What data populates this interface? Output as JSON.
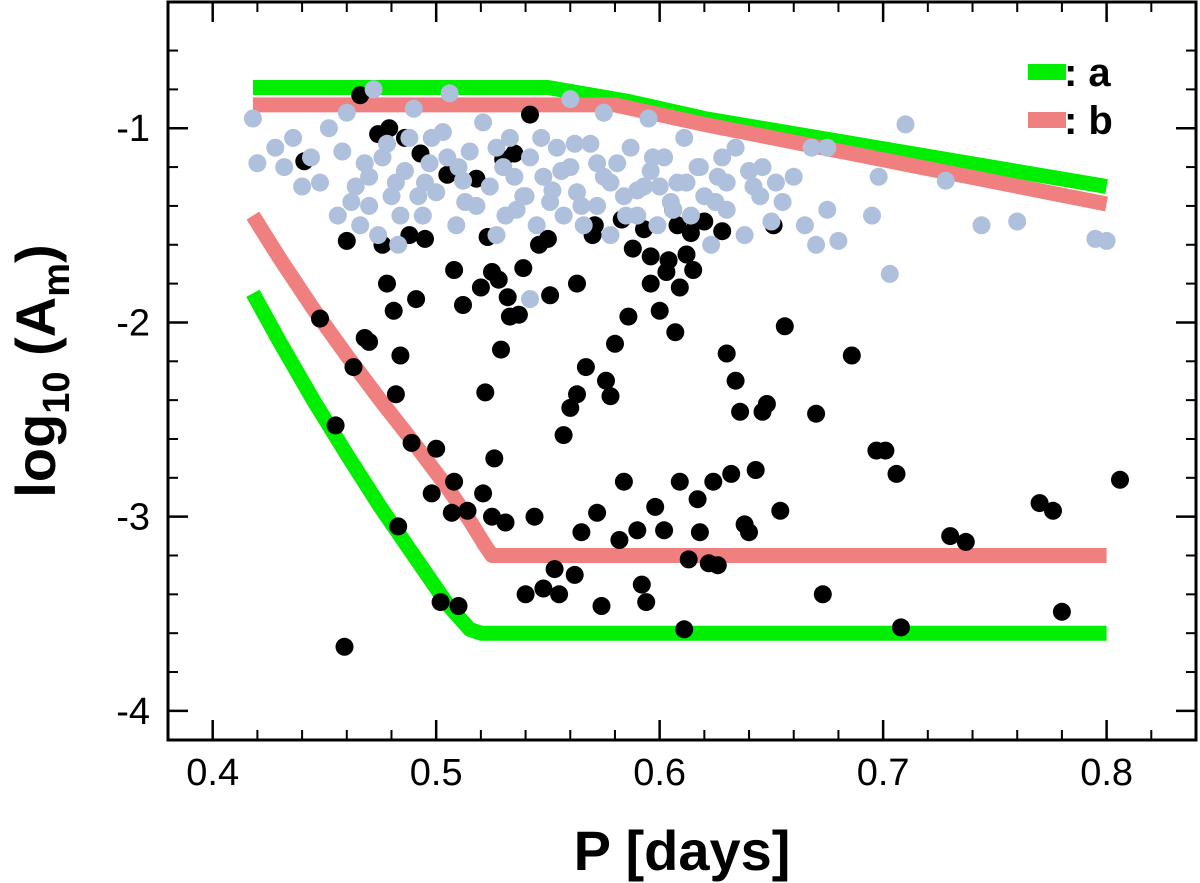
{
  "chart_data": {
    "type": "scatter",
    "xlabel": "P [days]",
    "ylabel": {
      "base": "log",
      "sub1": "10",
      "mid": " (A",
      "sub2": "m",
      "end": ")"
    },
    "xlim": [
      0.38,
      0.84
    ],
    "ylim": [
      -4.15,
      -0.35
    ],
    "xticks": [
      0.4,
      0.5,
      0.6,
      0.7,
      0.8
    ],
    "xtick_labels": [
      "0.4",
      "0.5",
      "0.6",
      "0.7",
      "0.8"
    ],
    "yticks": [
      -1,
      -2,
      -3,
      -4
    ],
    "ytick_labels": [
      "-1",
      "-2",
      "-3",
      "-4"
    ],
    "grid": false,
    "legend_position": "top-right",
    "colors": {
      "a": "#00ee00",
      "b": "#f08080",
      "light": "#aec0dc",
      "dark": "#000000"
    },
    "lines": [
      {
        "name": ": a",
        "color": "#00ee00",
        "points": [
          [
            0.418,
            -0.79
          ],
          [
            0.55,
            -0.79
          ],
          [
            0.585,
            -0.86
          ],
          [
            0.62,
            -0.95
          ],
          [
            0.8,
            -1.3
          ]
        ]
      },
      {
        "name": ": b",
        "color": "#f08080",
        "points": [
          [
            0.418,
            -0.88
          ],
          [
            0.58,
            -0.88
          ],
          [
            0.62,
            -0.98
          ],
          [
            0.8,
            -1.39
          ]
        ]
      },
      {
        "color": "#f08080",
        "points": [
          [
            0.418,
            -1.45
          ],
          [
            0.43,
            -1.67
          ],
          [
            0.445,
            -1.93
          ],
          [
            0.46,
            -2.17
          ],
          [
            0.475,
            -2.4
          ],
          [
            0.49,
            -2.62
          ],
          [
            0.505,
            -2.85
          ],
          [
            0.515,
            -3.02
          ],
          [
            0.522,
            -3.15
          ],
          [
            0.525,
            -3.2
          ],
          [
            0.8,
            -3.2
          ]
        ]
      },
      {
        "color": "#00ee00",
        "points": [
          [
            0.418,
            -1.85
          ],
          [
            0.43,
            -2.1
          ],
          [
            0.445,
            -2.4
          ],
          [
            0.46,
            -2.68
          ],
          [
            0.475,
            -2.95
          ],
          [
            0.49,
            -3.2
          ],
          [
            0.505,
            -3.45
          ],
          [
            0.515,
            -3.58
          ],
          [
            0.52,
            -3.6
          ],
          [
            0.8,
            -3.6
          ]
        ]
      }
    ],
    "series": [
      {
        "color": "#000000",
        "points": [
          [
            0.441,
            -1.17
          ],
          [
            0.448,
            -1.98
          ],
          [
            0.455,
            -2.53
          ],
          [
            0.459,
            -3.67
          ],
          [
            0.46,
            -1.58
          ],
          [
            0.463,
            -2.23
          ],
          [
            0.466,
            -0.83
          ],
          [
            0.468,
            -2.08
          ],
          [
            0.47,
            -2.1
          ],
          [
            0.474,
            -1.03
          ],
          [
            0.476,
            -1.6
          ],
          [
            0.478,
            -1.8
          ],
          [
            0.479,
            -1.0
          ],
          [
            0.481,
            -1.94
          ],
          [
            0.482,
            -2.37
          ],
          [
            0.483,
            -3.05
          ],
          [
            0.484,
            -2.17
          ],
          [
            0.486,
            -1.05
          ],
          [
            0.488,
            -1.55
          ],
          [
            0.489,
            -2.62
          ],
          [
            0.491,
            -1.88
          ],
          [
            0.493,
            -1.13
          ],
          [
            0.495,
            -1.57
          ],
          [
            0.498,
            -2.88
          ],
          [
            0.5,
            -2.65
          ],
          [
            0.502,
            -3.44
          ],
          [
            0.505,
            -1.24
          ],
          [
            0.507,
            -2.98
          ],
          [
            0.508,
            -2.82
          ],
          [
            0.51,
            -3.46
          ],
          [
            0.512,
            -1.91
          ],
          [
            0.514,
            -2.97
          ],
          [
            0.518,
            -1.26
          ],
          [
            0.52,
            -1.82
          ],
          [
            0.521,
            -2.88
          ],
          [
            0.522,
            -2.36
          ],
          [
            0.523,
            -1.56
          ],
          [
            0.525,
            -3.0
          ],
          [
            0.526,
            -2.7
          ],
          [
            0.528,
            -1.78
          ],
          [
            0.529,
            -2.14
          ],
          [
            0.53,
            -1.16
          ],
          [
            0.531,
            -3.03
          ],
          [
            0.532,
            -1.87
          ],
          [
            0.533,
            -1.97
          ],
          [
            0.535,
            -1.13
          ],
          [
            0.537,
            -1.96
          ],
          [
            0.539,
            -1.72
          ],
          [
            0.54,
            -3.4
          ],
          [
            0.542,
            -0.93
          ],
          [
            0.544,
            -3.0
          ],
          [
            0.546,
            -1.6
          ],
          [
            0.548,
            -3.37
          ],
          [
            0.55,
            -1.57
          ],
          [
            0.551,
            -1.86
          ],
          [
            0.553,
            -3.27
          ],
          [
            0.555,
            -3.4
          ],
          [
            0.557,
            -2.58
          ],
          [
            0.56,
            -2.44
          ],
          [
            0.562,
            -3.3
          ],
          [
            0.563,
            -2.37
          ],
          [
            0.565,
            -3.08
          ],
          [
            0.567,
            -2.23
          ],
          [
            0.57,
            -1.55
          ],
          [
            0.572,
            -2.98
          ],
          [
            0.574,
            -3.46
          ],
          [
            0.576,
            -2.3
          ],
          [
            0.578,
            -2.38
          ],
          [
            0.58,
            -2.11
          ],
          [
            0.582,
            -3.12
          ],
          [
            0.584,
            -2.82
          ],
          [
            0.586,
            -1.97
          ],
          [
            0.588,
            -1.62
          ],
          [
            0.59,
            -3.07
          ],
          [
            0.592,
            -3.35
          ],
          [
            0.594,
            -3.44
          ],
          [
            0.596,
            -1.8
          ],
          [
            0.598,
            -2.95
          ],
          [
            0.6,
            -1.94
          ],
          [
            0.602,
            -3.07
          ],
          [
            0.604,
            -1.68
          ],
          [
            0.606,
            -1.42
          ],
          [
            0.607,
            -2.05
          ],
          [
            0.609,
            -2.82
          ],
          [
            0.611,
            -3.58
          ],
          [
            0.613,
            -3.22
          ],
          [
            0.615,
            -1.73
          ],
          [
            0.617,
            -2.91
          ],
          [
            0.618,
            -3.08
          ],
          [
            0.62,
            -1.48
          ],
          [
            0.622,
            -3.24
          ],
          [
            0.624,
            -2.82
          ],
          [
            0.626,
            -3.25
          ],
          [
            0.628,
            -1.53
          ],
          [
            0.63,
            -2.16
          ],
          [
            0.632,
            -2.78
          ],
          [
            0.634,
            -2.3
          ],
          [
            0.636,
            -2.46
          ],
          [
            0.638,
            -3.04
          ],
          [
            0.64,
            -3.08
          ],
          [
            0.643,
            -2.76
          ],
          [
            0.646,
            -2.46
          ],
          [
            0.648,
            -2.42
          ],
          [
            0.651,
            -1.5
          ],
          [
            0.654,
            -2.97
          ],
          [
            0.656,
            -2.02
          ],
          [
            0.67,
            -2.47
          ],
          [
            0.673,
            -3.4
          ],
          [
            0.686,
            -2.17
          ],
          [
            0.697,
            -2.66
          ],
          [
            0.701,
            -2.66
          ],
          [
            0.706,
            -2.78
          ],
          [
            0.708,
            -3.57
          ],
          [
            0.73,
            -3.1
          ],
          [
            0.737,
            -3.13
          ],
          [
            0.77,
            -2.93
          ],
          [
            0.776,
            -2.97
          ],
          [
            0.78,
            -3.49
          ],
          [
            0.806,
            -2.81
          ],
          [
            0.571,
            -1.5
          ],
          [
            0.583,
            -1.47
          ],
          [
            0.593,
            -1.52
          ],
          [
            0.596,
            -1.66
          ],
          [
            0.603,
            -1.74
          ],
          [
            0.608,
            -1.5
          ],
          [
            0.609,
            -1.82
          ],
          [
            0.612,
            -1.65
          ],
          [
            0.614,
            -1.54
          ],
          [
            0.616,
            -1.48
          ],
          [
            0.563,
            -1.8
          ],
          [
            0.525,
            -1.74
          ],
          [
            0.508,
            -1.73
          ]
        ]
      },
      {
        "color": "#aec0dc",
        "points": [
          [
            0.418,
            -0.95
          ],
          [
            0.42,
            -1.18
          ],
          [
            0.428,
            -1.1
          ],
          [
            0.432,
            -1.2
          ],
          [
            0.436,
            -1.05
          ],
          [
            0.44,
            -1.3
          ],
          [
            0.444,
            -1.15
          ],
          [
            0.448,
            -1.28
          ],
          [
            0.452,
            -1.0
          ],
          [
            0.456,
            -1.45
          ],
          [
            0.46,
            -0.92
          ],
          [
            0.464,
            -1.3
          ],
          [
            0.466,
            -1.5
          ],
          [
            0.47,
            -1.4
          ],
          [
            0.472,
            -0.8
          ],
          [
            0.474,
            -1.55
          ],
          [
            0.478,
            -1.08
          ],
          [
            0.48,
            -1.35
          ],
          [
            0.483,
            -1.6
          ],
          [
            0.486,
            -1.22
          ],
          [
            0.49,
            -0.9
          ],
          [
            0.494,
            -1.45
          ],
          [
            0.497,
            -1.18
          ],
          [
            0.5,
            -1.33
          ],
          [
            0.503,
            -1.02
          ],
          [
            0.506,
            -0.82
          ],
          [
            0.509,
            -1.5
          ],
          [
            0.512,
            -1.27
          ],
          [
            0.515,
            -1.12
          ],
          [
            0.518,
            -1.4
          ],
          [
            0.521,
            -0.97
          ],
          [
            0.524,
            -1.3
          ],
          [
            0.527,
            -1.55
          ],
          [
            0.53,
            -1.2
          ],
          [
            0.533,
            -1.05
          ],
          [
            0.536,
            -1.42
          ],
          [
            0.539,
            -1.35
          ],
          [
            0.542,
            -1.15
          ],
          [
            0.545,
            -1.5
          ],
          [
            0.548,
            -1.25
          ],
          [
            0.551,
            -1.38
          ],
          [
            0.554,
            -1.1
          ],
          [
            0.557,
            -1.45
          ],
          [
            0.56,
            -1.2
          ],
          [
            0.563,
            -1.33
          ],
          [
            0.566,
            -1.5
          ],
          [
            0.569,
            -1.08
          ],
          [
            0.572,
            -1.4
          ],
          [
            0.575,
            -1.25
          ],
          [
            0.578,
            -1.55
          ],
          [
            0.581,
            -1.18
          ],
          [
            0.584,
            -1.35
          ],
          [
            0.587,
            -1.1
          ],
          [
            0.59,
            -1.45
          ],
          [
            0.593,
            -1.3
          ],
          [
            0.596,
            -1.22
          ],
          [
            0.599,
            -1.5
          ],
          [
            0.602,
            -1.15
          ],
          [
            0.605,
            -1.38
          ],
          [
            0.608,
            -1.28
          ],
          [
            0.611,
            -1.05
          ],
          [
            0.614,
            -1.45
          ],
          [
            0.617,
            -1.2
          ],
          [
            0.62,
            -1.35
          ],
          [
            0.623,
            -1.6
          ],
          [
            0.626,
            -1.25
          ],
          [
            0.63,
            -1.42
          ],
          [
            0.634,
            -1.1
          ],
          [
            0.638,
            -1.55
          ],
          [
            0.642,
            -1.3
          ],
          [
            0.646,
            -1.2
          ],
          [
            0.65,
            -1.48
          ],
          [
            0.655,
            -1.38
          ],
          [
            0.66,
            -1.25
          ],
          [
            0.665,
            -1.5
          ],
          [
            0.67,
            -1.6
          ],
          [
            0.675,
            -1.42
          ],
          [
            0.68,
            -1.58
          ],
          [
            0.695,
            -1.45
          ],
          [
            0.698,
            -1.25
          ],
          [
            0.703,
            -1.75
          ],
          [
            0.71,
            -0.98
          ],
          [
            0.728,
            -1.27
          ],
          [
            0.744,
            -1.5
          ],
          [
            0.76,
            -1.48
          ],
          [
            0.795,
            -1.57
          ],
          [
            0.8,
            -1.58
          ],
          [
            0.542,
            -1.88
          ],
          [
            0.668,
            -1.1
          ],
          [
            0.675,
            -1.1
          ],
          [
            0.56,
            -0.85
          ],
          [
            0.575,
            -0.92
          ],
          [
            0.595,
            -0.95
          ],
          [
            0.488,
            -1.05
          ],
          [
            0.505,
            -1.15
          ],
          [
            0.535,
            -1.25
          ],
          [
            0.552,
            -1.32
          ],
          [
            0.565,
            -1.4
          ],
          [
            0.585,
            -1.45
          ],
          [
            0.6,
            -1.3
          ],
          [
            0.618,
            -1.2
          ],
          [
            0.63,
            -1.28
          ],
          [
            0.645,
            -1.35
          ],
          [
            0.47,
            -1.25
          ],
          [
            0.476,
            -1.15
          ],
          [
            0.482,
            -1.28
          ],
          [
            0.492,
            -1.35
          ],
          [
            0.498,
            -1.05
          ],
          [
            0.51,
            -1.2
          ],
          [
            0.527,
            -1.1
          ],
          [
            0.54,
            -1.35
          ],
          [
            0.556,
            -1.22
          ],
          [
            0.572,
            -1.18
          ],
          [
            0.59,
            -1.32
          ],
          [
            0.606,
            -1.42
          ],
          [
            0.625,
            -1.38
          ],
          [
            0.64,
            -1.22
          ],
          [
            0.458,
            -1.12
          ],
          [
            0.462,
            -1.38
          ],
          [
            0.468,
            -1.18
          ],
          [
            0.484,
            -1.45
          ],
          [
            0.495,
            -1.28
          ],
          [
            0.513,
            -1.38
          ],
          [
            0.531,
            -1.45
          ],
          [
            0.547,
            -1.05
          ],
          [
            0.562,
            -1.08
          ],
          [
            0.578,
            -1.28
          ],
          [
            0.597,
            -1.15
          ],
          [
            0.612,
            -1.28
          ],
          [
            0.628,
            -1.15
          ],
          [
            0.652,
            -1.28
          ]
        ]
      }
    ]
  }
}
